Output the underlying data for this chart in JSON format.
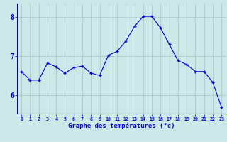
{
  "hours": [
    0,
    1,
    2,
    3,
    4,
    5,
    6,
    7,
    8,
    9,
    10,
    11,
    12,
    13,
    14,
    15,
    16,
    17,
    18,
    19,
    20,
    21,
    22,
    23
  ],
  "temps": [
    6.6,
    6.38,
    6.38,
    6.82,
    6.72,
    6.56,
    6.7,
    6.74,
    6.56,
    6.5,
    7.02,
    7.12,
    7.38,
    7.76,
    8.02,
    8.02,
    7.72,
    7.3,
    6.88,
    6.78,
    6.6,
    6.6,
    6.32,
    5.68
  ],
  "xlabel": "Graphe des températures (°c)",
  "xlim": [
    -0.5,
    23.5
  ],
  "ylim": [
    5.5,
    8.35
  ],
  "yticks": [
    6,
    7,
    8
  ],
  "xtick_labels": [
    "0",
    "1",
    "2",
    "3",
    "4",
    "5",
    "6",
    "7",
    "8",
    "9",
    "10",
    "11",
    "12",
    "13",
    "14",
    "15",
    "16",
    "17",
    "18",
    "19",
    "20",
    "21",
    "22",
    "23"
  ],
  "line_color": "#0000cc",
  "marker_color": "#0000cc",
  "bg_color": "#cce8e8",
  "grid_color": "#b0c8c8",
  "axis_color": "#0000cc",
  "label_color": "#0000cc",
  "tick_color": "#0000cc"
}
